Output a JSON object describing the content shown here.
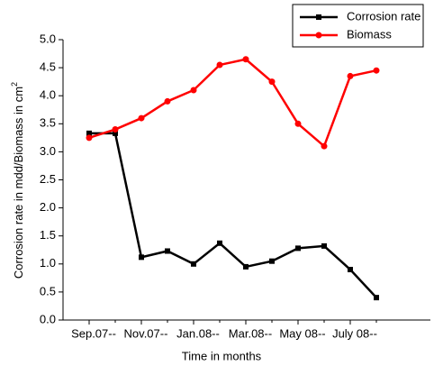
{
  "chart_data": {
    "type": "line",
    "xlabel": "Time in months",
    "ylabel": "Corrosion rate in mdd/Biomass in cm",
    "ylabel_superscript": "2",
    "categories": [
      "Sep.07--",
      null,
      "Nov.07--",
      null,
      "Jan.08--",
      null,
      "Mar.08--",
      null,
      "May 08--",
      null,
      "July 08--",
      null
    ],
    "series": [
      {
        "name": "Corrosion rate",
        "color": "#000000",
        "marker": "square",
        "values": [
          3.33,
          3.33,
          1.12,
          1.23,
          1.0,
          1.37,
          0.95,
          1.05,
          1.28,
          1.32,
          0.9,
          0.4
        ]
      },
      {
        "name": "Biomass",
        "color": "#ff0000",
        "marker": "circle",
        "values": [
          3.25,
          3.4,
          3.6,
          3.9,
          4.1,
          4.55,
          4.65,
          4.25,
          3.5,
          3.1,
          4.35,
          4.45
        ]
      }
    ],
    "ylim": [
      0,
      5
    ],
    "yticks": [
      {
        "value": 0,
        "label": "0.0"
      },
      0.5,
      {
        "value": 1,
        "label": "1.0"
      },
      1.5,
      {
        "value": 2,
        "label": "2.0"
      },
      2.5,
      {
        "value": 3,
        "label": "3.0"
      },
      3.5,
      {
        "value": 4,
        "label": "4.0"
      },
      4.5,
      {
        "value": 5,
        "label": "5.0"
      }
    ],
    "legend": "upper right"
  }
}
